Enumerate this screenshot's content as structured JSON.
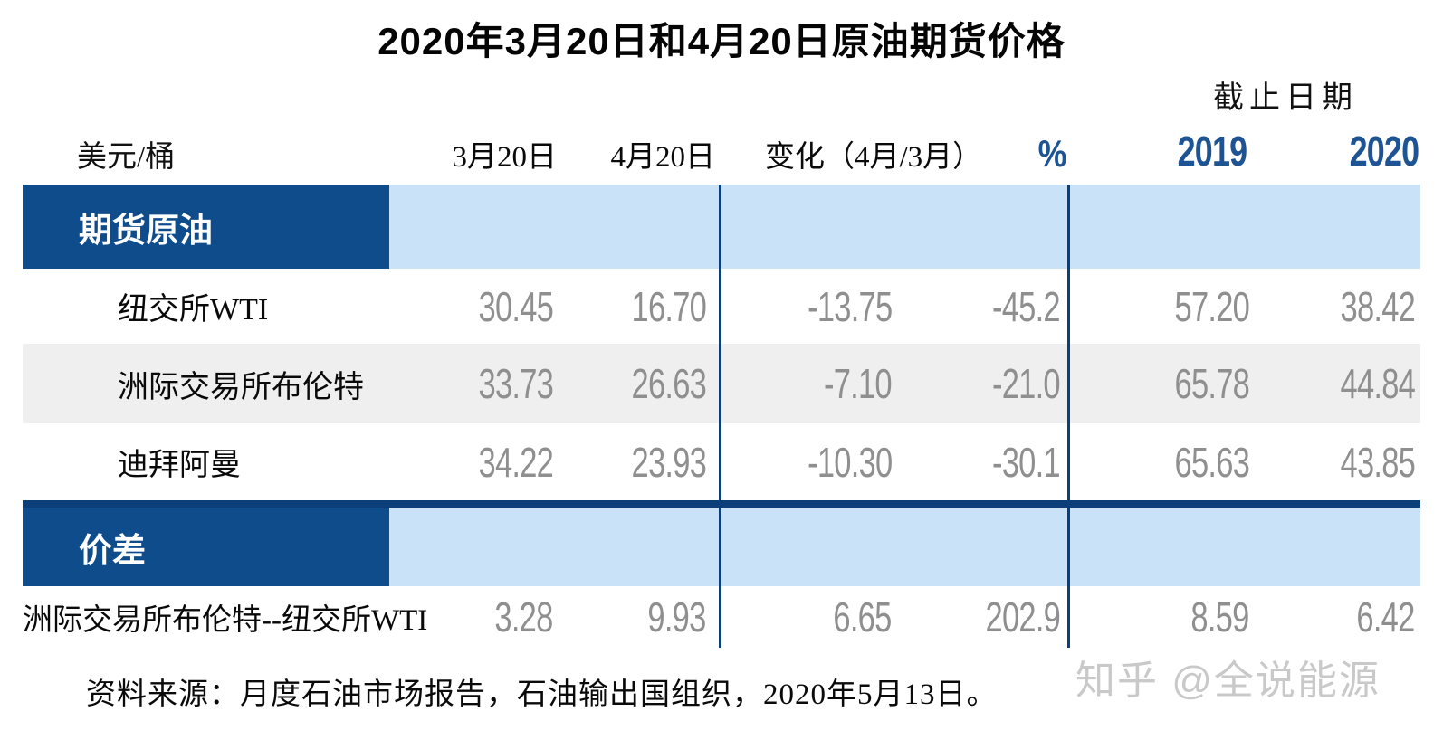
{
  "title": "2020年3月20日和4月20日原油期货价格",
  "table": {
    "unit_label": "美元/桶",
    "deadline_label": "截止日期",
    "columns": [
      "3月20日",
      "4月20日",
      "变化（4月/3月）",
      "%",
      "2019",
      "2020"
    ],
    "sections": [
      {
        "header": "期货原油",
        "rows": [
          {
            "label": "纽交所WTI",
            "values": [
              "30.45",
              "16.70",
              "-13.75",
              "-45.2",
              "57.20",
              "38.42"
            ]
          },
          {
            "label": "洲际交易所布伦特",
            "values": [
              "33.73",
              "26.63",
              "-7.10",
              "-21.0",
              "65.78",
              "44.84"
            ]
          },
          {
            "label": "迪拜阿曼",
            "values": [
              "34.22",
              "23.93",
              "-10.30",
              "-30.1",
              "65.63",
              "43.85"
            ]
          }
        ]
      },
      {
        "header": "价差",
        "rows": [
          {
            "label": "洲际交易所布伦特--纽交所WTI",
            "values": [
              "3.28",
              "9.93",
              "6.65",
              "202.9",
              "8.59",
              "6.42"
            ]
          }
        ]
      }
    ]
  },
  "source_note": "资料来源：月度石油市场报告，石油输出国组织，2020年5月13日。",
  "watermark": "知乎 @全说能源",
  "colors": {
    "section_navy": "#0e4c8c",
    "line_navy": "#0c3e7a",
    "band_light_blue": "#c9e2f8",
    "stripe_gray": "#efefef",
    "number_gray": "#8f8f8f",
    "header_navy": "#1e5394"
  },
  "chart_data": {
    "type": "table",
    "title": "2020年3月20日和4月20日原油期货价格",
    "unit": "美元/桶",
    "columns": [
      "3月20日",
      "4月20日",
      "变化（4月/3月）",
      "%",
      "截止日期 2019",
      "截止日期 2020"
    ],
    "sections": [
      {
        "name": "期货原油",
        "rows": [
          {
            "label": "纽交所WTI",
            "values": [
              30.45,
              16.7,
              -13.75,
              -45.2,
              57.2,
              38.42
            ]
          },
          {
            "label": "洲际交易所布伦特",
            "values": [
              33.73,
              26.63,
              -7.1,
              -21.0,
              65.78,
              44.84
            ]
          },
          {
            "label": "迪拜阿曼",
            "values": [
              34.22,
              23.93,
              -10.3,
              -30.1,
              65.63,
              43.85
            ]
          }
        ]
      },
      {
        "name": "价差",
        "rows": [
          {
            "label": "洲际交易所布伦特--纽交所WTI",
            "values": [
              3.28,
              9.93,
              6.65,
              202.9,
              8.59,
              6.42
            ]
          }
        ]
      }
    ],
    "source": "资料来源：月度石油市场报告，石油输出国组织，2020年5月13日。"
  }
}
